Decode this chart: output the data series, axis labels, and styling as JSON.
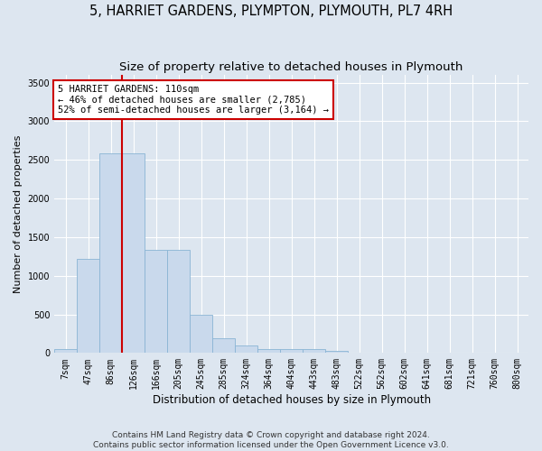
{
  "title": "5, HARRIET GARDENS, PLYMPTON, PLYMOUTH, PL7 4RH",
  "subtitle": "Size of property relative to detached houses in Plymouth",
  "xlabel": "Distribution of detached houses by size in Plymouth",
  "ylabel": "Number of detached properties",
  "categories": [
    "7sqm",
    "47sqm",
    "86sqm",
    "126sqm",
    "166sqm",
    "205sqm",
    "245sqm",
    "285sqm",
    "324sqm",
    "364sqm",
    "404sqm",
    "443sqm",
    "483sqm",
    "522sqm",
    "562sqm",
    "602sqm",
    "641sqm",
    "681sqm",
    "721sqm",
    "760sqm",
    "800sqm"
  ],
  "values": [
    50,
    1220,
    2580,
    2580,
    1335,
    1335,
    500,
    190,
    100,
    52,
    52,
    52,
    30,
    0,
    0,
    0,
    0,
    0,
    0,
    0,
    0
  ],
  "bar_color": "#c9d9ec",
  "bar_edge_color": "#8ab4d4",
  "bar_edge_width": 0.6,
  "vline_x_index": 2.5,
  "vline_color": "#cc0000",
  "ylim": [
    0,
    3600
  ],
  "yticks": [
    0,
    500,
    1000,
    1500,
    2000,
    2500,
    3000,
    3500
  ],
  "bg_color": "#dde6f0",
  "grid_color": "#ffffff",
  "annotation_text": "5 HARRIET GARDENS: 110sqm\n← 46% of detached houses are smaller (2,785)\n52% of semi-detached houses are larger (3,164) →",
  "annotation_box_color": "#ffffff",
  "annotation_box_edge_color": "#cc0000",
  "footer_line1": "Contains HM Land Registry data © Crown copyright and database right 2024.",
  "footer_line2": "Contains public sector information licensed under the Open Government Licence v3.0.",
  "title_fontsize": 10.5,
  "subtitle_fontsize": 9.5,
  "xlabel_fontsize": 8.5,
  "ylabel_fontsize": 8,
  "tick_fontsize": 7,
  "annotation_fontsize": 7.5,
  "footer_fontsize": 6.5
}
